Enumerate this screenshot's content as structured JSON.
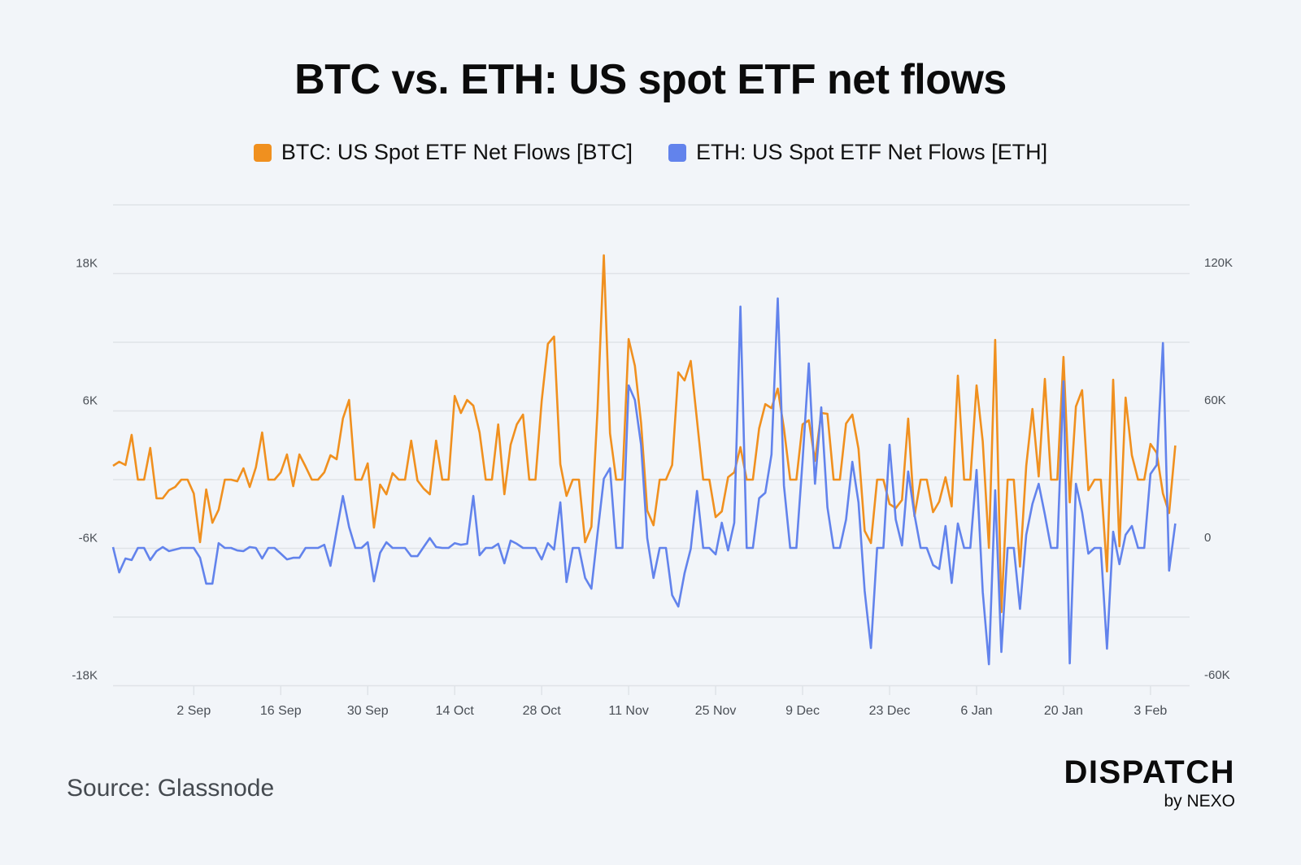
{
  "title": "BTC vs. ETH: US spot ETF net flows",
  "source": "Source: Glassnode",
  "logo": {
    "main": "DISPATCH",
    "sub": "by NEXO"
  },
  "colors": {
    "btc": "#f0901f",
    "eth": "#6283ec",
    "grid": "#dfe3e8",
    "axis_text": "#4a4f56",
    "background": "#f2f5f9"
  },
  "chart_data": {
    "type": "line",
    "title": "BTC vs. ETH: US spot ETF net flows",
    "legend_position": "top-center",
    "grid": true,
    "x_ticks": [
      {
        "label": "2 Sep",
        "index": 13
      },
      {
        "label": "16 Sep",
        "index": 27
      },
      {
        "label": "30 Sep",
        "index": 41
      },
      {
        "label": "14 Oct",
        "index": 55
      },
      {
        "label": "28 Oct",
        "index": 69
      },
      {
        "label": "11 Nov",
        "index": 83
      },
      {
        "label": "25 Nov",
        "index": 97
      },
      {
        "label": "9 Dec",
        "index": 111
      },
      {
        "label": "23 Dec",
        "index": 125
      },
      {
        "label": "6 Jan",
        "index": 139
      },
      {
        "label": "20 Jan",
        "index": 153
      },
      {
        "label": "3 Feb",
        "index": 167
      }
    ],
    "left_axis": {
      "range": [
        -18000,
        24000
      ],
      "ticks": [
        {
          "v": 18000,
          "label": "18K"
        },
        {
          "v": 6000,
          "label": "6K"
        },
        {
          "v": -6000,
          "label": "-6K"
        },
        {
          "v": -18000,
          "label": "-18K"
        }
      ],
      "grid": [
        24000,
        18000,
        12000,
        6000,
        0,
        -6000,
        -12000,
        -18000
      ]
    },
    "right_axis": {
      "range": [
        -60000,
        150000
      ],
      "ticks": [
        {
          "v": 120000,
          "label": "120K"
        },
        {
          "v": 60000,
          "label": "60K"
        },
        {
          "v": 0,
          "label": "0"
        },
        {
          "v": -60000,
          "label": "-60K"
        }
      ]
    },
    "series": [
      {
        "name": "BTC: US Spot ETF Net Flows [BTC]",
        "axis": "left",
        "color": "#f0901f",
        "values": [
          1210,
          1560,
          1280,
          3910,
          0,
          0,
          2770,
          -1630,
          -1630,
          -920,
          -640,
          0,
          0,
          -1210,
          -5470,
          -850,
          -3760,
          -2630,
          0,
          0,
          -140,
          990,
          -640,
          1070,
          4120,
          0,
          0,
          640,
          2200,
          -570,
          2200,
          1140,
          0,
          0,
          640,
          2130,
          1780,
          5330,
          6960,
          0,
          0,
          1420,
          -4190,
          -430,
          -1280,
          570,
          0,
          0,
          3410,
          -70,
          -780,
          -1280,
          3410,
          0,
          0,
          7310,
          5820,
          6960,
          6460,
          4120,
          0,
          0,
          4830,
          -1280,
          3050,
          4830,
          5680,
          0,
          0,
          6890,
          11860,
          12500,
          1350,
          -1420,
          0,
          0,
          -5470,
          -4120,
          6180,
          19600,
          4050,
          0,
          0,
          12280,
          9940,
          4970,
          -2700,
          -3980,
          0,
          0,
          1280,
          9370,
          8660,
          10370,
          5180,
          0,
          0,
          -3270,
          -2770,
          210,
          640,
          2840,
          0,
          0,
          4470,
          6600,
          6250,
          7950,
          4470,
          0,
          0,
          4830,
          5180,
          1630,
          5820,
          5750,
          0,
          0,
          4900,
          5680,
          2700,
          -4470,
          -5540,
          0,
          0,
          -2130,
          -2490,
          -1780,
          5330,
          -3200,
          0,
          0,
          -2840,
          -1920,
          210,
          -2340,
          9090,
          0,
          0,
          8240,
          3340,
          -5960,
          12210,
          -11570,
          0,
          0,
          -7600,
          1210,
          6180,
          280,
          8800,
          0,
          0,
          10720,
          -1990,
          6390,
          7810,
          -920,
          0,
          0,
          -8020,
          8730,
          -5820,
          7170,
          2130,
          0,
          0,
          3120,
          2340,
          -1210,
          -2910,
          2980
        ]
      },
      {
        "name": "ETH: US Spot ETF Net Flows [ETH]",
        "axis": "right",
        "color": "#6283ec",
        "values": [
          400,
          -10700,
          -4600,
          -5300,
          0,
          0,
          -5300,
          -1400,
          400,
          -1400,
          -700,
          0,
          0,
          0,
          -4300,
          -15600,
          -15600,
          2100,
          0,
          0,
          -1100,
          -1400,
          400,
          0,
          -4600,
          0,
          0,
          -2500,
          -5000,
          -4300,
          -4300,
          0,
          0,
          0,
          1400,
          -7800,
          7500,
          22700,
          9200,
          0,
          0,
          2500,
          -14600,
          -2100,
          2500,
          0,
          0,
          0,
          -3600,
          -3600,
          400,
          4300,
          400,
          0,
          0,
          2100,
          1400,
          1800,
          22700,
          -3200,
          0,
          0,
          1800,
          -6700,
          3200,
          1800,
          0,
          0,
          0,
          -5000,
          2100,
          -700,
          19900,
          -14900,
          0,
          0,
          -13100,
          -17800,
          6400,
          30200,
          34800,
          0,
          0,
          71000,
          64600,
          45100,
          4300,
          -13100,
          0,
          0,
          -20600,
          -25600,
          -11000,
          -400,
          24900,
          0,
          0,
          -2800,
          11000,
          -1100,
          11000,
          105400,
          0,
          0,
          21700,
          24100,
          40800,
          109000,
          27300,
          0,
          0,
          38000,
          80600,
          28000,
          61400,
          17700,
          0,
          0,
          12400,
          37600,
          19900,
          -18800,
          -43700,
          0,
          0,
          45100,
          12400,
          1100,
          33400,
          14600,
          0,
          0,
          -7500,
          -9200,
          9600,
          -15300,
          10700,
          0,
          0,
          34100,
          -19200,
          -50800,
          25200,
          -45400,
          0,
          0,
          -26600,
          5700,
          19200,
          28000,
          14600,
          0,
          0,
          72800,
          -50400,
          28000,
          15600,
          -2500,
          0,
          0,
          -44000,
          7100,
          -7100,
          5700,
          9600,
          0,
          0,
          32300,
          36200,
          89500,
          -9900,
          10700
        ]
      }
    ]
  }
}
